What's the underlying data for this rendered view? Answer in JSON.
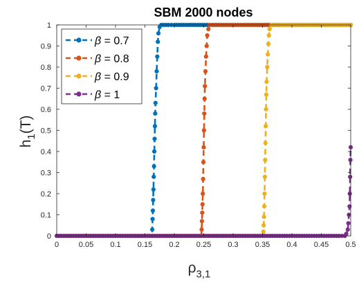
{
  "chart_data": {
    "type": "line",
    "title": "SBM 2000 nodes",
    "xlabel": {
      "main": "ρ",
      "sub": "3,1"
    },
    "ylabel": {
      "main": "h",
      "sub": "1",
      "suffix": "(T)"
    },
    "xlim": [
      0,
      0.5
    ],
    "ylim": [
      0,
      1
    ],
    "xticks": [
      "0",
      "0.05",
      "0.1",
      "0.15",
      "0.2",
      "0.25",
      "0.3",
      "0.35",
      "0.4",
      "0.45",
      "0.5"
    ],
    "yticks": [
      "0",
      "0.1",
      "0.2",
      "0.3",
      "0.4",
      "0.5",
      "0.6",
      "0.7",
      "0.8",
      "0.9",
      "1"
    ],
    "grid": false,
    "legend_placement": "top-left",
    "series": [
      {
        "name": "β = 0.7",
        "legend_symbol": "β",
        "legend_value": " = 0.7",
        "color": "#0072BD",
        "x": [
          0,
          0.162,
          0.1625,
          0.163,
          0.1635,
          0.164,
          0.1645,
          0.165,
          0.1655,
          0.166,
          0.1665,
          0.167,
          0.1675,
          0.168,
          0.169,
          0.17,
          0.171,
          0.172,
          0.173,
          0.175,
          0.178,
          0.182,
          0.19,
          0.2,
          0.22,
          0.24,
          0.26,
          0.28,
          0.3,
          0.5
        ],
        "y": [
          0,
          0,
          0.03,
          0.08,
          0.12,
          0.17,
          0.22,
          0.28,
          0.33,
          0.4,
          0.46,
          0.52,
          0.58,
          0.63,
          0.7,
          0.78,
          0.85,
          0.92,
          0.96,
          0.99,
          1,
          1,
          1,
          1,
          1,
          1,
          1,
          1,
          1,
          1
        ]
      },
      {
        "name": "β = 0.8",
        "legend_symbol": "β",
        "legend_value": " = 0.8",
        "color": "#D95319",
        "x": [
          0,
          0.246,
          0.2465,
          0.247,
          0.2475,
          0.248,
          0.2485,
          0.249,
          0.2495,
          0.25,
          0.2505,
          0.251,
          0.2515,
          0.252,
          0.253,
          0.254,
          0.255,
          0.256,
          0.258,
          0.26,
          0.265,
          0.27,
          0.28,
          0.3,
          0.35,
          0.4,
          0.5
        ],
        "y": [
          0,
          0,
          0.03,
          0.07,
          0.11,
          0.15,
          0.2,
          0.27,
          0.35,
          0.42,
          0.5,
          0.58,
          0.65,
          0.71,
          0.78,
          0.85,
          0.9,
          0.95,
          0.98,
          1,
          1,
          1,
          1,
          1,
          1,
          1,
          1
        ]
      },
      {
        "name": "β = 0.9",
        "legend_symbol": "β",
        "legend_value": " = 0.9",
        "color": "#EDB120",
        "x": [
          0,
          0.351,
          0.3515,
          0.352,
          0.3525,
          0.353,
          0.3535,
          0.354,
          0.3545,
          0.355,
          0.3555,
          0.356,
          0.3565,
          0.357,
          0.358,
          0.359,
          0.36,
          0.361,
          0.362,
          0.365,
          0.37,
          0.38,
          0.4,
          0.45,
          0.5
        ],
        "y": [
          0,
          0,
          0.02,
          0.05,
          0.09,
          0.14,
          0.2,
          0.28,
          0.36,
          0.44,
          0.52,
          0.6,
          0.67,
          0.73,
          0.8,
          0.86,
          0.91,
          0.95,
          0.98,
          1,
          1,
          1,
          1,
          1,
          1
        ]
      },
      {
        "name": "β = 1",
        "legend_symbol": "β",
        "legend_value": " = 1",
        "color": "#7E2F8E",
        "x": [
          0,
          0.1,
          0.2,
          0.3,
          0.4,
          0.48,
          0.49,
          0.4925,
          0.495,
          0.496,
          0.497,
          0.498,
          0.4985,
          0.499,
          0.4995,
          0.5
        ],
        "y": [
          0,
          0,
          0,
          0,
          0,
          0,
          0,
          0.01,
          0.03,
          0.06,
          0.1,
          0.14,
          0.2,
          0.28,
          0.36,
          0.42
        ]
      }
    ]
  }
}
